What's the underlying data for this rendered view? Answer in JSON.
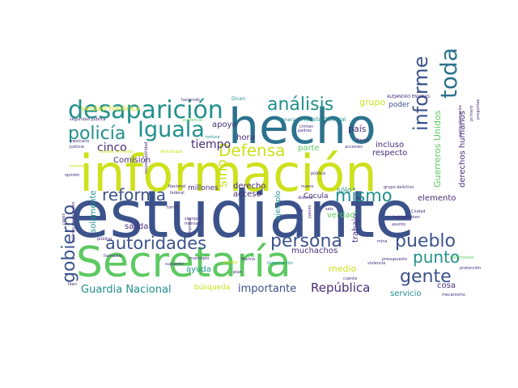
{
  "palette": {
    "navy": "#3b528b",
    "teal": "#21908d",
    "dteal": "#2c728e",
    "green": "#5ec962",
    "lgreen": "#7ad151",
    "yellow": "#cde11d",
    "purple": "#472d7b",
    "dpurple": "#440154"
  },
  "words": [
    {
      "t": "estudiante",
      "c": "navy"
    },
    {
      "t": "información",
      "c": "yellow"
    },
    {
      "t": "hecho",
      "c": "dteal"
    },
    {
      "t": "Secretaría",
      "c": "green"
    },
    {
      "t": "desaparición",
      "c": "teal"
    },
    {
      "t": "Iguala",
      "c": "teal"
    },
    {
      "t": "análisis",
      "c": "teal"
    },
    {
      "t": "policía",
      "c": "teal"
    },
    {
      "t": "toda",
      "c": "dteal"
    },
    {
      "t": "informe",
      "c": "navy"
    },
    {
      "t": "Defensa",
      "c": "yellow"
    },
    {
      "t": "reforma",
      "c": "navy"
    },
    {
      "t": "mismo",
      "c": "teal"
    },
    {
      "t": "autoridades",
      "c": "navy"
    },
    {
      "t": "persona",
      "c": "navy"
    },
    {
      "t": "pueblo",
      "c": "navy"
    },
    {
      "t": "gobierno",
      "c": "navy"
    },
    {
      "t": "gente",
      "c": "navy"
    },
    {
      "t": "punto",
      "c": "teal"
    },
    {
      "t": "Guardia Nacional",
      "c": "teal"
    },
    {
      "t": "importante",
      "c": "navy"
    },
    {
      "t": "República",
      "c": "purple"
    },
    {
      "t": "sino",
      "c": "yellow"
    },
    {
      "t": "verdad histórica",
      "c": "yellow"
    },
    {
      "t": "cinco",
      "c": "purple"
    },
    {
      "t": "tiempo",
      "c": "purple"
    },
    {
      "t": "grupo",
      "c": "yellow"
    },
    {
      "t": "poder",
      "c": "navy"
    },
    {
      "t": "país",
      "c": "purple"
    },
    {
      "t": "Guerreros Unidos",
      "c": "green"
    },
    {
      "t": "derechos humanos",
      "c": "purple"
    },
    {
      "t": "incluso",
      "c": "purple"
    },
    {
      "t": "respecto",
      "c": "purple"
    },
    {
      "t": "elemento",
      "c": "purple"
    },
    {
      "t": "apoyo",
      "c": "purple"
    },
    {
      "t": "hora",
      "c": "purple"
    },
    {
      "t": "parte",
      "c": "green"
    },
    {
      "t": "Comisión",
      "c": "purple"
    },
    {
      "t": "millones",
      "c": "purple"
    },
    {
      "t": "derecho",
      "c": "purple"
    },
    {
      "t": "acceso",
      "c": "purple"
    },
    {
      "t": "ejemplo",
      "c": "teal"
    },
    {
      "t": "Cocula",
      "c": "purple"
    },
    {
      "t": "trabajo",
      "c": "purple"
    },
    {
      "t": "sólo",
      "c": "teal"
    },
    {
      "t": "verdad",
      "c": "green"
    },
    {
      "t": "muchachos",
      "c": "purple"
    },
    {
      "t": "salida",
      "c": "purple"
    },
    {
      "t": "ayuda",
      "c": "teal"
    },
    {
      "t": "búsqueda",
      "c": "yellow"
    },
    {
      "t": "medio",
      "c": "yellow"
    },
    {
      "t": "cosa",
      "c": "purple"
    },
    {
      "t": "servicio",
      "c": "teal"
    },
    {
      "t": "solamente",
      "c": "teal"
    },
    {
      "t": "haciendo",
      "c": "purple"
    },
    {
      "t": "Dicen",
      "c": "teal"
    },
    {
      "t": "ALEJANDRO ENCINAS",
      "c": "purple"
    },
    {
      "t": "seguridad pública",
      "c": "purple"
    },
    {
      "t": "evidencia",
      "c": "green"
    },
    {
      "t": "manera",
      "c": "teal"
    },
    {
      "t": "Fiscalía General",
      "c": "teal"
    },
    {
      "t": "crimen",
      "c": "purple"
    },
    {
      "t": "tortura",
      "c": "teal"
    },
    {
      "t": "padres",
      "c": "purple"
    },
    {
      "t": "mexicano",
      "c": "purple"
    },
    {
      "t": "Justicia",
      "c": "purple"
    },
    {
      "t": "acciones",
      "c": "purple"
    },
    {
      "t": "opinión",
      "c": "purple"
    },
    {
      "t": "Fuerzas Armadas",
      "c": "yellow"
    },
    {
      "t": "Ayotzinapa",
      "c": "yellow"
    },
    {
      "t": "pública",
      "c": "purple"
    },
    {
      "t": "grupo delictivo",
      "c": "purple"
    },
    {
      "t": "distinto",
      "c": "purple"
    },
    {
      "t": "seis",
      "c": "purple"
    },
    {
      "t": "mina",
      "c": "purple"
    },
    {
      "t": "público",
      "c": "purple"
    },
    {
      "t": "municipio",
      "c": "purple"
    },
    {
      "t": "Marina",
      "c": "purple"
    },
    {
      "t": "Gobernación",
      "c": "teal"
    },
    {
      "t": "presupuesto",
      "c": "purple"
    },
    {
      "t": "violencia",
      "c": "purple"
    },
    {
      "t": "cuenta",
      "c": "purple"
    },
    {
      "t": "mecanismo",
      "c": "purple"
    },
    {
      "t": "protección",
      "c": "purple"
    },
    {
      "t": "asunto",
      "c": "purple"
    },
    {
      "t": "Ciudad",
      "c": "purple"
    },
    {
      "t": "bien",
      "c": "purple"
    },
    {
      "t": "hablando",
      "c": "purple"
    },
    {
      "t": "llamados",
      "c": "purple"
    },
    {
      "t": "supuesto",
      "c": "purple"
    },
    {
      "t": "plan",
      "c": "purple"
    },
    {
      "t": "prueba",
      "c": "yellow"
    },
    {
      "t": "mensaje",
      "c": "purple"
    },
    {
      "t": "siempre",
      "c": "purple"
    },
    {
      "t": "federal",
      "c": "purple"
    },
    {
      "t": "Nacional",
      "c": "purple"
    },
    {
      "t": "internet",
      "c": "yellow"
    },
    {
      "t": "casos",
      "c": "purple"
    },
    {
      "t": "policías municipales",
      "c": "purple"
    },
    {
      "t": "responsabilidad",
      "c": "purple"
    },
    {
      "t": "primero",
      "c": "purple"
    },
    {
      "t": "particularmente",
      "c": "purple"
    },
    {
      "t": "testimonios",
      "c": "green"
    },
    {
      "t": "tomar",
      "c": "purple"
    },
    {
      "t": "empresa",
      "c": "purple"
    },
    {
      "t": "nuevo",
      "c": "purple"
    },
    {
      "t": "jueves",
      "c": "purple"
    },
    {
      "t": "dieron",
      "c": "purple"
    },
    {
      "t": "preguntas",
      "c": "purple"
    },
    {
      "t": "Iban",
      "c": "purple"
    },
    {
      "t": "ha",
      "c": "purple"
    }
  ]
}
